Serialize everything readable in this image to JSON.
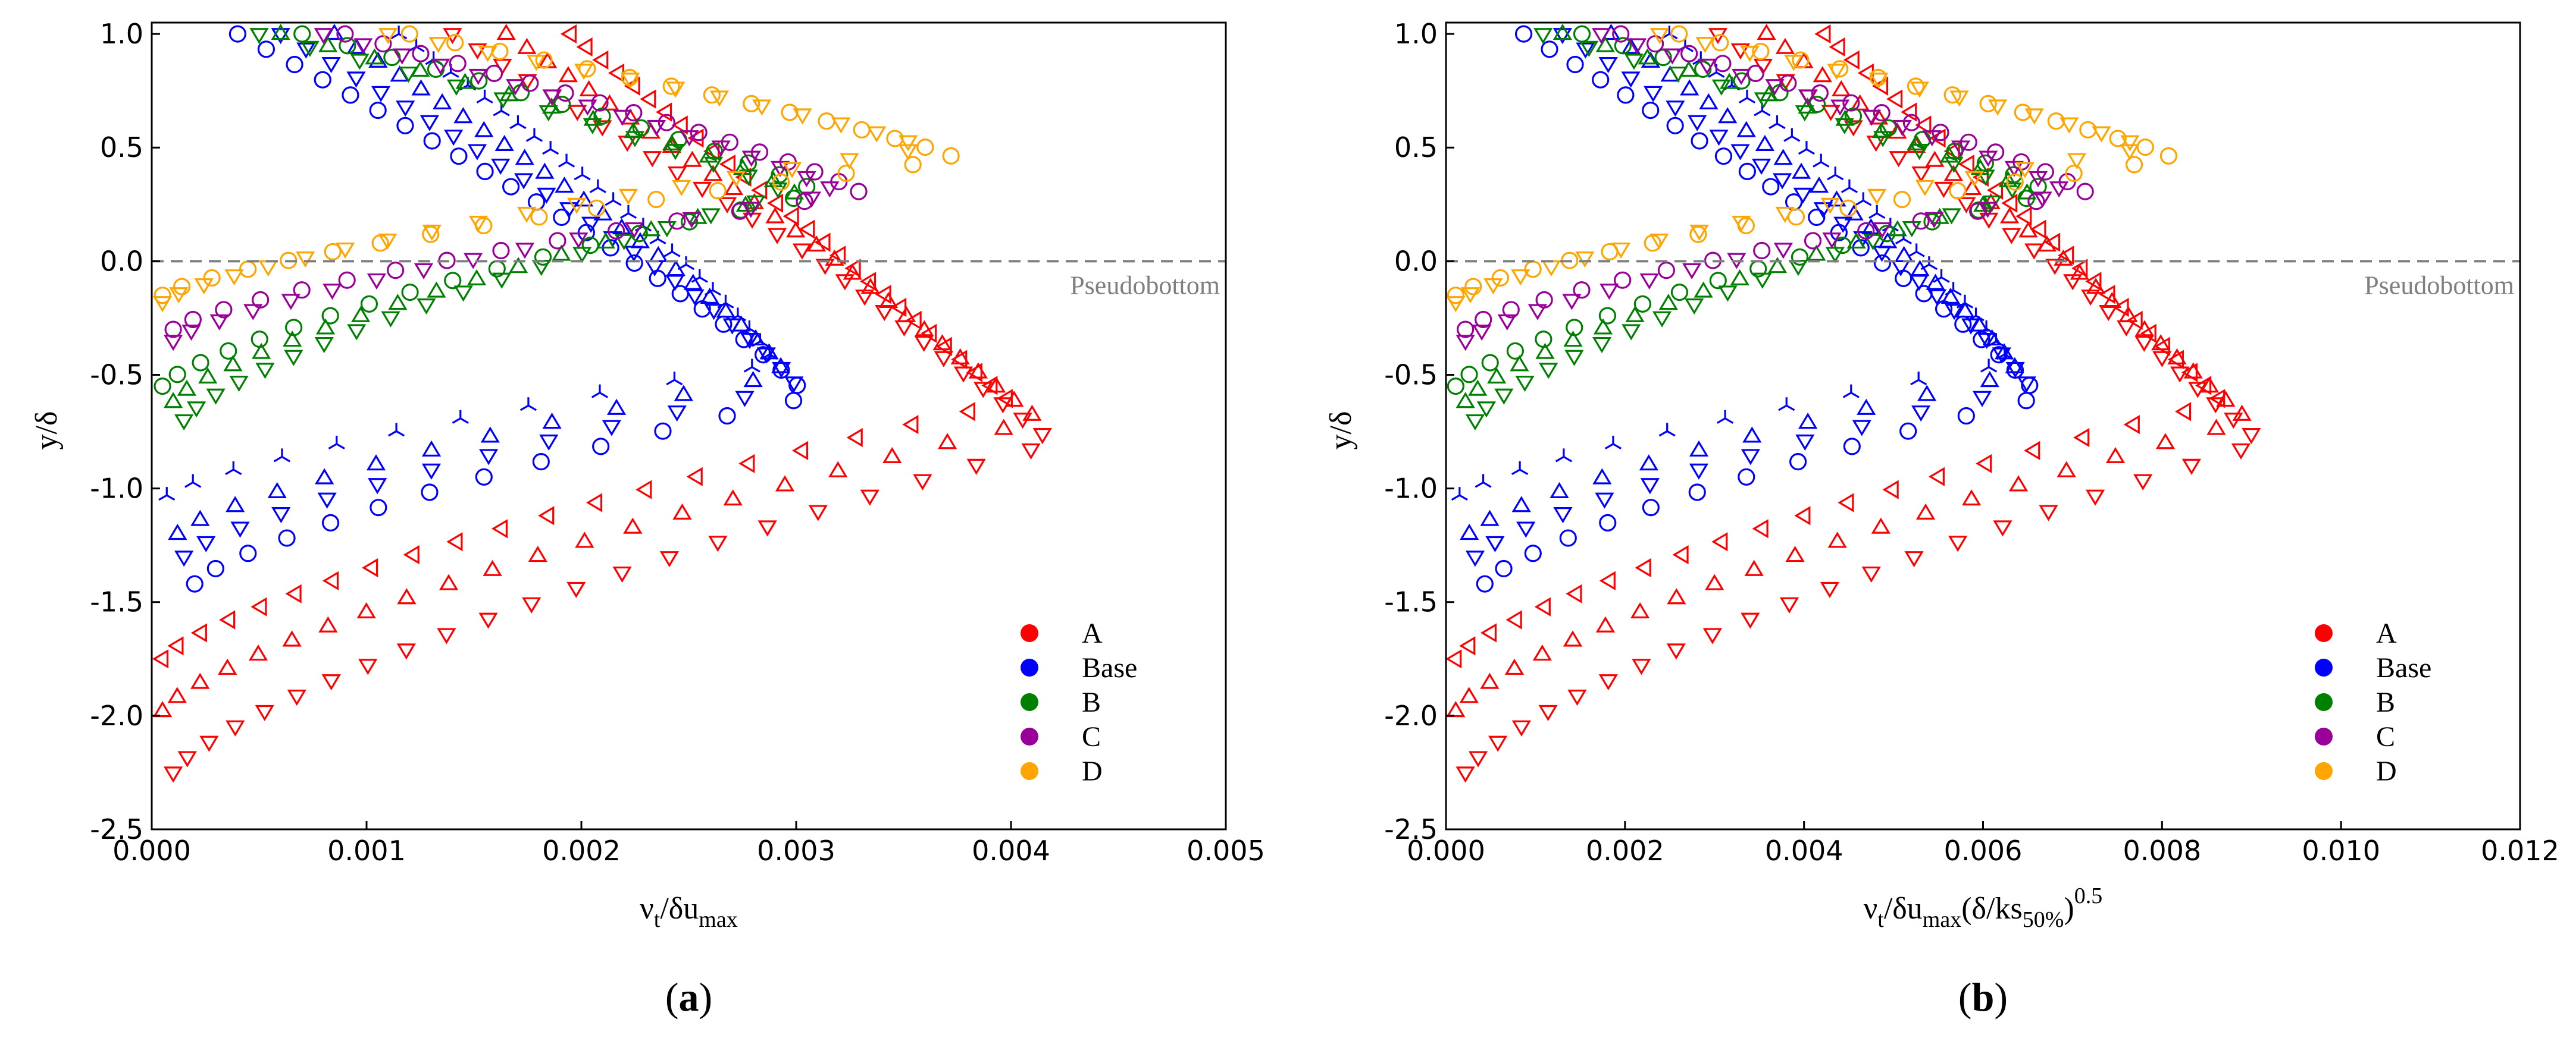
{
  "chart_data": [
    {
      "type": "scatter",
      "panel": "a",
      "caption_letter": "a",
      "xlabel": "νt/δumax",
      "xlabel_parts": {
        "base": "ν",
        "sub1": "t",
        "mid": "/δu",
        "sub2": "max"
      },
      "ylabel": "y/δ",
      "xlim": [
        0,
        0.005
      ],
      "ylim": [
        -2.5,
        1.05
      ],
      "xticks": [
        "0.000",
        "0.001",
        "0.002",
        "0.003",
        "0.004",
        "0.005"
      ],
      "xtick_values": [
        0,
        0.001,
        0.002,
        0.003,
        0.004,
        0.005
      ],
      "yticks": [
        "1.0",
        "0.5",
        "0.0",
        "-0.5",
        "-1.0",
        "-1.5",
        "-2.0",
        "-2.5"
      ],
      "ytick_values": [
        1.0,
        0.5,
        0.0,
        -0.5,
        -1.0,
        -1.5,
        -2.0,
        -2.5
      ],
      "reference_line": {
        "y": 0.0,
        "label": "Pseudobottom"
      },
      "legend_position": "lower-right",
      "xscale": 1.0
    },
    {
      "type": "scatter",
      "panel": "b",
      "caption_letter": "b",
      "xlabel": "νt/δumax(δ/ks50%)0.5",
      "xlabel_parts": {
        "base": "ν",
        "sub1": "t",
        "mid": "/δu",
        "sub2": "max",
        "mid2": "(δ/ks",
        "sub3": "50%",
        "close": ")",
        "sup": "0.5"
      },
      "ylabel": "y/δ",
      "xlim": [
        0,
        0.012
      ],
      "ylim": [
        -2.5,
        1.05
      ],
      "xticks": [
        "0.000",
        "0.002",
        "0.004",
        "0.006",
        "0.008",
        "0.010",
        "0.012"
      ],
      "xtick_values": [
        0,
        0.002,
        0.004,
        0.006,
        0.008,
        0.01,
        0.012
      ],
      "yticks": [
        "1.0",
        "0.5",
        "0.0",
        "-0.5",
        "-1.0",
        "-1.5",
        "-2.0",
        "-2.5"
      ],
      "ytick_values": [
        1.0,
        0.5,
        0.0,
        -0.5,
        -1.0,
        -1.5,
        -2.0,
        -2.5
      ],
      "reference_line": {
        "y": 0.0,
        "label": "Pseudobottom"
      },
      "legend_position": "lower-right",
      "xscale": 2.17
    }
  ],
  "series": [
    {
      "name": "A",
      "color": "#ff0000",
      "profiles": [
        {
          "marker": "tri-left",
          "bottom": -1.75,
          "bx": 5e-05,
          "tx": 0.00195,
          "peak": 0.004,
          "peak_y": -0.62,
          "lower_peak": 0.0038
        },
        {
          "marker": "tri-up",
          "bottom": -1.98,
          "bx": 5e-05,
          "tx": 0.00165,
          "peak": 0.00413,
          "peak_y": -0.7,
          "lower_peak": 0.0039
        },
        {
          "marker": "tri-down",
          "bottom": -2.25,
          "bx": 0.0001,
          "tx": 0.0014,
          "peak": 0.0042,
          "peak_y": -0.8,
          "lower_peak": 0.004
        }
      ]
    },
    {
      "name": "Base",
      "color": "#0000ff",
      "profiles": [
        {
          "marker": "tri",
          "bottom": -1.03,
          "bx": 7e-05,
          "tx": 0.00115,
          "peak": 0.0029,
          "peak_y": -0.45
        },
        {
          "marker": "tri-up",
          "bottom": -1.2,
          "bx": 0.00012,
          "tx": 0.00085,
          "peak": 0.00295,
          "peak_y": -0.5
        },
        {
          "marker": "tri-down",
          "bottom": -1.3,
          "bx": 0.00015,
          "tx": 0.0006,
          "peak": 0.003,
          "peak_y": -0.55
        },
        {
          "marker": "circle",
          "bottom": -1.42,
          "bx": 0.0002,
          "tx": 0.0004,
          "peak": 0.00305,
          "peak_y": -0.6
        }
      ]
    },
    {
      "name": "B",
      "color": "#008000",
      "profiles": [
        {
          "marker": "circle",
          "bottom": -0.55,
          "bx": 5e-05,
          "tx": 0.0007,
          "peak": 0.0031,
          "peak_y": 0.3
        },
        {
          "marker": "tri-up",
          "bottom": -0.62,
          "bx": 0.0001,
          "tx": 0.0006,
          "peak": 0.003,
          "peak_y": 0.3
        },
        {
          "marker": "tri-down",
          "bottom": -0.7,
          "bx": 0.00015,
          "tx": 0.0005,
          "peak": 0.00295,
          "peak_y": 0.3
        }
      ]
    },
    {
      "name": "C",
      "color": "#990099",
      "profiles": [
        {
          "marker": "circle",
          "bottom": -0.3,
          "bx": 0.0001,
          "tx": 0.0009,
          "peak": 0.0033,
          "peak_y": 0.3
        },
        {
          "marker": "tri-down",
          "bottom": -0.35,
          "bx": 0.0001,
          "tx": 0.0008,
          "peak": 0.0032,
          "peak_y": 0.3
        }
      ]
    },
    {
      "name": "D",
      "color": "#ffa500",
      "profiles": [
        {
          "marker": "circle",
          "bottom": -0.15,
          "bx": 5e-05,
          "tx": 0.0012,
          "peak": 0.00375,
          "peak_y": 0.45
        },
        {
          "marker": "tri-down",
          "bottom": -0.18,
          "bx": 5e-05,
          "tx": 0.0011,
          "peak": 0.0036,
          "peak_y": 0.5
        }
      ]
    }
  ]
}
